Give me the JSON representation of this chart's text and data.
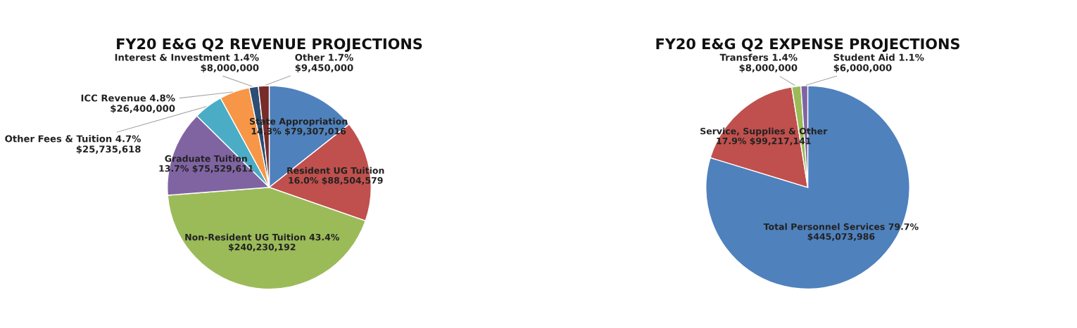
{
  "chart_data": [
    {
      "type": "pie",
      "title": "FY20 E&G Q2 REVENUE PROJECTIONS",
      "categories": [
        "State Appropriation",
        "Resident UG Tuition",
        "Non-Resident UG Tuition",
        "Graduate Tuition",
        "Other Fees & Tuition",
        "ICC Revenue",
        "Interest & Investment",
        "Other"
      ],
      "values": [
        79307016,
        88504579,
        240230192,
        75529611,
        25735618,
        26400000,
        8000000,
        9450000
      ],
      "value_labels": [
        "14.3%\n$79,307,016",
        "16.0%\n$88,504,579",
        "43.4%\n$240,230,192",
        "13.7%\n$75,529,611",
        "4.7%\n$25,735,618",
        "4.8%\n$26,400,000",
        "1.4%\n$8,000,000",
        "1.7%\n$9,450,000"
      ],
      "colors": [
        "#4f81bd",
        "#c0504d",
        "#9bbb59",
        "#8064a2",
        "#4bacc6",
        "#f79646",
        "#2c4d75",
        "#772c2a"
      ]
    },
    {
      "type": "pie",
      "title": "FY20 E&G Q2 EXPENSE PROJECTIONS",
      "categories": [
        "Total Personnel Services",
        "Service, Supplies & Other",
        "Transfers",
        "Student Aid"
      ],
      "values": [
        445073986,
        99217141,
        8000000,
        6000000
      ],
      "value_labels": [
        "79.7%\n$445,073,986",
        "17.9%\n$99,217,141",
        "1.4%\n$8,000,000",
        "1.1%\n$6,000,000"
      ],
      "colors": [
        "#4f81bd",
        "#c0504d",
        "#9bbb59",
        "#8064a2"
      ]
    }
  ]
}
